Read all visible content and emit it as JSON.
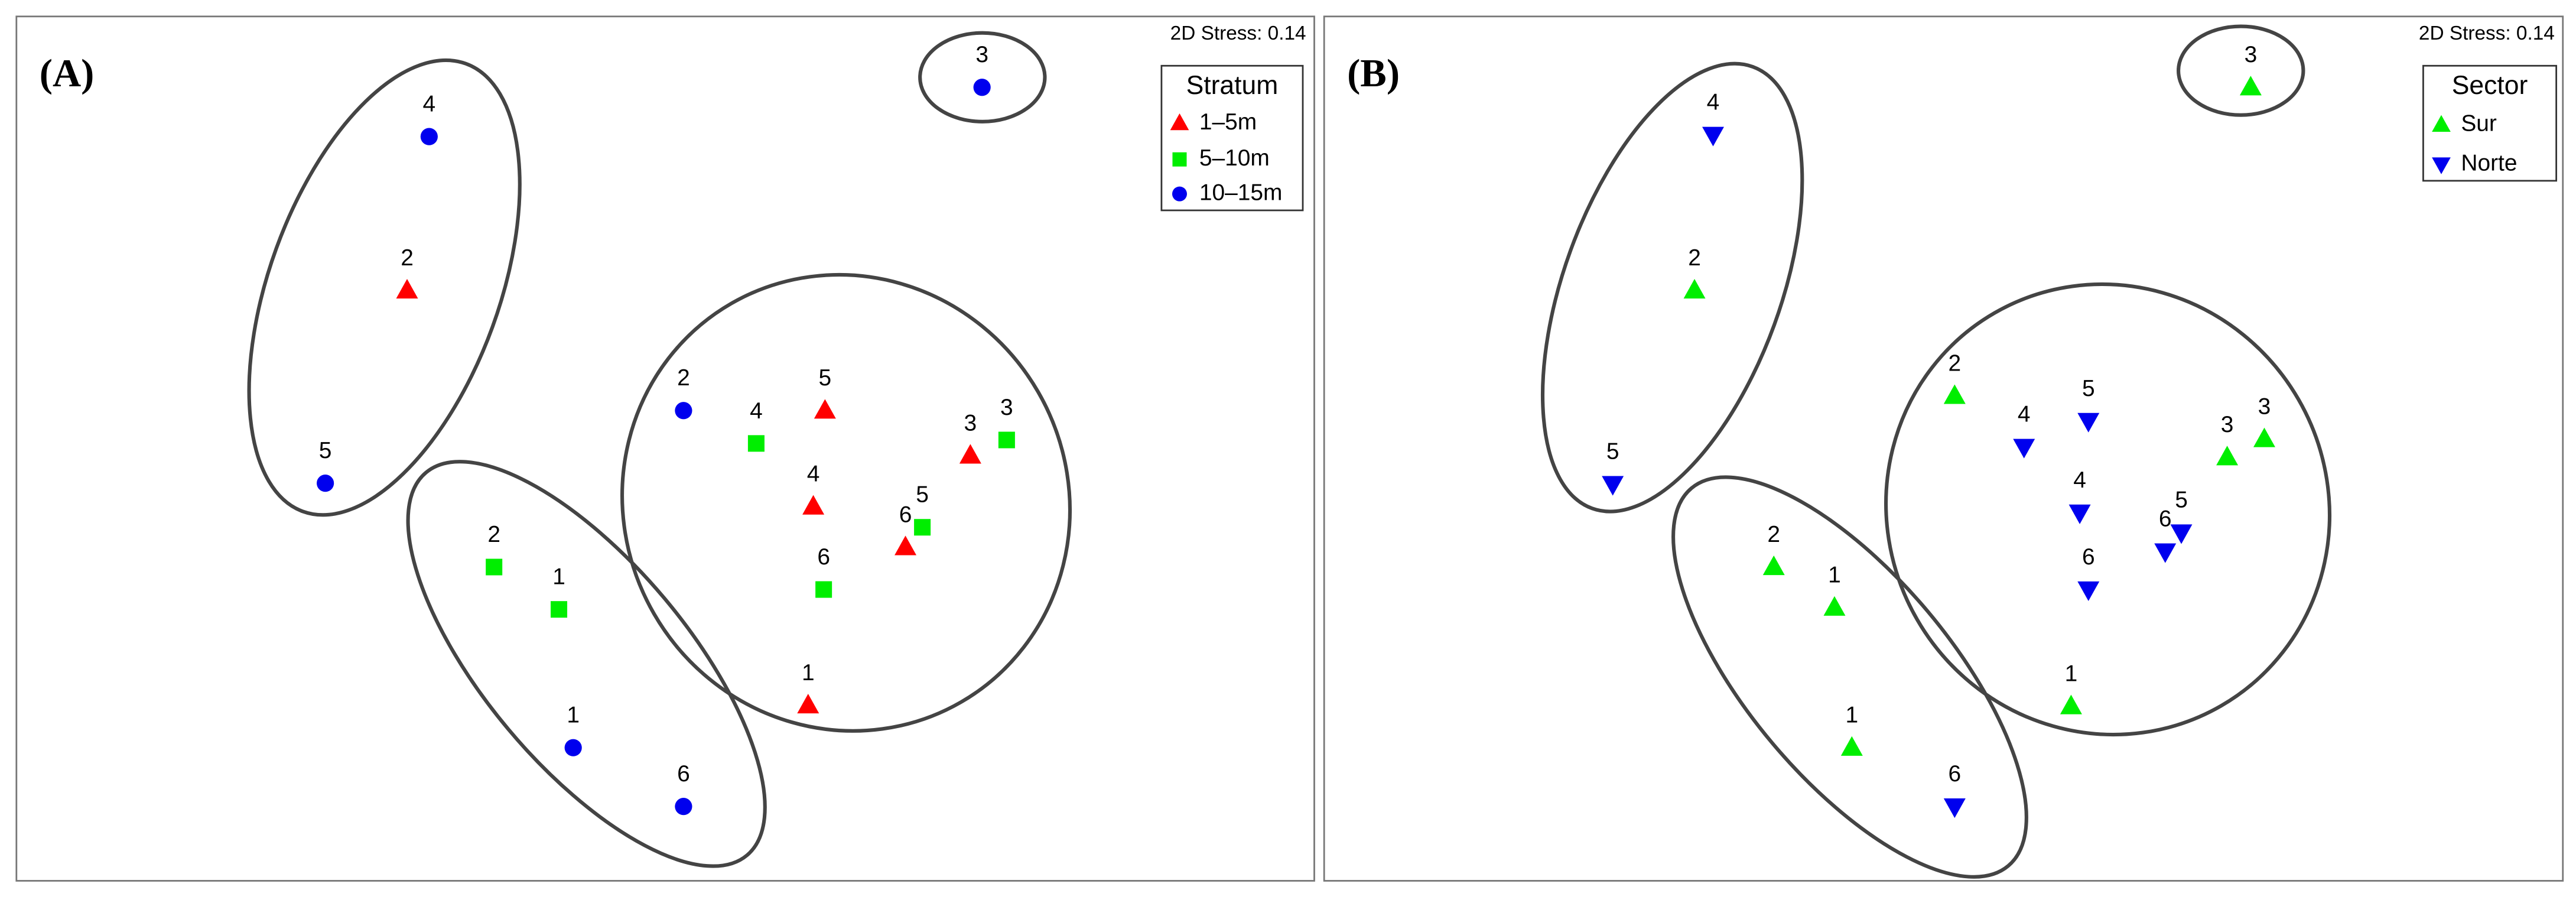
{
  "chart_data": [
    {
      "type": "scatter",
      "panel_label": "(A)",
      "stress": "2D Stress: 0.14",
      "legend_title": "Stratum",
      "xlim": [
        0,
        100
      ],
      "ylim": [
        0,
        100
      ],
      "series": [
        {
          "name": "1–5m",
          "color": "#ff0000",
          "marker": "triangle",
          "x": [
            30.1,
            62.3,
            61.4,
            73.5,
            68.5,
            61.0
          ],
          "y": [
            68.3,
            54.4,
            43.3,
            49.2,
            38.6,
            20.3
          ],
          "labels": [
            "2",
            "5",
            "4",
            "3",
            "6",
            "1"
          ]
        },
        {
          "name": "5–10m",
          "color": "#00ee00",
          "marker": "square",
          "x": [
            57.0,
            76.3,
            69.8,
            62.2,
            36.8,
            41.8
          ],
          "y": [
            50.6,
            51.0,
            40.9,
            33.7,
            36.3,
            31.4
          ],
          "labels": [
            "4",
            "3",
            "5",
            "6",
            "2",
            "1"
          ]
        },
        {
          "name": "10–15m",
          "color": "#0000ee",
          "marker": "circle",
          "x": [
            31.8,
            23.8,
            51.4,
            42.9,
            51.4,
            74.4
          ],
          "y": [
            86.1,
            46.0,
            54.4,
            15.4,
            8.6,
            91.8
          ],
          "labels": [
            "4",
            "5",
            "2",
            "1",
            "6",
            "3"
          ]
        }
      ]
    },
    {
      "type": "scatter",
      "panel_label": "(B)",
      "stress": "2D Stress: 0.14",
      "legend_title": "Sector",
      "xlim": [
        0,
        100
      ],
      "ylim": [
        0,
        100
      ],
      "series": [
        {
          "name": "Sur",
          "color": "#00ee00",
          "marker": "triangle",
          "x": [
            74.8,
            29.9,
            50.9,
            72.9,
            75.9,
            36.3,
            41.2,
            60.3,
            42.6
          ],
          "y": [
            91.8,
            68.3,
            56.1,
            49.0,
            51.1,
            36.3,
            31.6,
            20.2,
            15.4
          ],
          "labels": [
            "3",
            "2",
            "2",
            "3",
            "3",
            "2",
            "1",
            "1",
            "1"
          ]
        },
        {
          "name": "Norte",
          "color": "#0000ee",
          "marker": "triangle-down",
          "x": [
            31.4,
            23.3,
            56.5,
            61.7,
            61.0,
            67.9,
            69.2,
            61.7,
            50.9
          ],
          "y": [
            86.3,
            45.9,
            50.2,
            53.2,
            42.6,
            38.1,
            40.3,
            33.7,
            8.6
          ],
          "labels": [
            "4",
            "5",
            "4",
            "5",
            "4",
            "6",
            "5",
            "6",
            "6"
          ]
        }
      ]
    }
  ]
}
